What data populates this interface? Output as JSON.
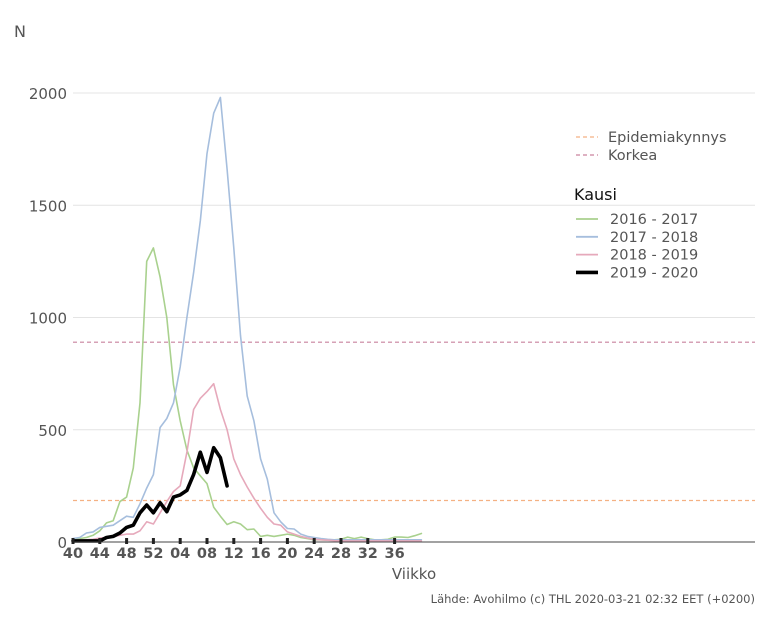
{
  "source_note": "Lähde: Avohilmo (c) THL 2020-03-21 02:32 EET (+0200)",
  "chart_data": {
    "type": "line",
    "title": "",
    "xlabel": "Viikko",
    "ylabel": "N",
    "ylim": [
      0,
      2000
    ],
    "y_ticks": [
      0,
      500,
      1000,
      1500,
      2000
    ],
    "x_tick_labels": [
      "40",
      "44",
      "48",
      "52",
      "04",
      "08",
      "12",
      "16",
      "20",
      "24",
      "28",
      "32",
      "36"
    ],
    "grid": "horizontal",
    "legend_position": "right",
    "thresholds": [
      {
        "name": "Epidemiakynnys",
        "value": 185,
        "color": "#f4b183",
        "dash": "dashed"
      },
      {
        "name": "Korkea",
        "value": 890,
        "color": "#c9829e",
        "dash": "dashed"
      }
    ],
    "legend_title": "Kausi",
    "series": [
      {
        "name": "2016 - 2017",
        "color": "#a9d18e",
        "width": 1.6,
        "values": [
          10,
          15,
          20,
          30,
          50,
          85,
          95,
          180,
          200,
          330,
          620,
          1250,
          1310,
          1180,
          1000,
          700,
          540,
          410,
          330,
          295,
          260,
          155,
          115,
          78,
          90,
          80,
          55,
          58,
          25,
          30,
          25,
          30,
          35,
          30,
          20,
          15,
          10,
          10,
          8,
          10,
          12,
          22,
          15,
          22,
          15,
          10,
          10,
          12,
          22,
          22,
          20,
          28,
          38
        ]
      },
      {
        "name": "2017 - 2018",
        "color": "#a6bedd",
        "width": 1.6,
        "values": [
          15,
          20,
          40,
          45,
          65,
          70,
          75,
          95,
          115,
          110,
          170,
          240,
          300,
          510,
          550,
          620,
          780,
          1000,
          1200,
          1430,
          1730,
          1910,
          1980,
          1660,
          1310,
          920,
          650,
          540,
          370,
          280,
          130,
          90,
          60,
          58,
          35,
          25,
          20,
          15,
          12,
          10,
          10,
          10,
          10,
          10,
          10,
          10,
          10,
          10,
          10,
          10,
          10,
          10,
          10
        ]
      },
      {
        "name": "2018 - 2019",
        "color": "#e6a9bb",
        "width": 1.6,
        "values": [
          5,
          8,
          10,
          12,
          18,
          20,
          25,
          30,
          35,
          35,
          50,
          90,
          80,
          130,
          180,
          225,
          250,
          400,
          590,
          640,
          670,
          705,
          590,
          500,
          370,
          300,
          245,
          195,
          150,
          110,
          80,
          75,
          45,
          35,
          25,
          18,
          12,
          10,
          8,
          6,
          5,
          5,
          5,
          5,
          5,
          5,
          5,
          5,
          5,
          5,
          5,
          5,
          5
        ]
      },
      {
        "name": "2019 - 2020",
        "color": "#000000",
        "width": 3.6,
        "values": [
          5,
          5,
          5,
          5,
          5,
          20,
          25,
          40,
          65,
          75,
          130,
          165,
          130,
          175,
          135,
          200,
          210,
          230,
          300,
          400,
          310,
          420,
          375,
          250
        ]
      }
    ]
  }
}
